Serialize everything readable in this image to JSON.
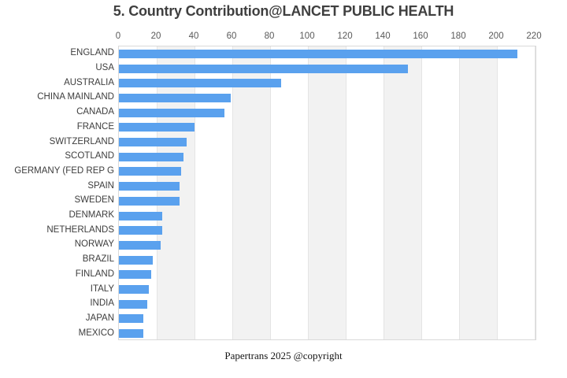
{
  "title": "5. Country Contribution@LANCET PUBLIC HEALTH",
  "footer": "Papertrans 2025 @copyright",
  "colors": {
    "bar": "#5aa1ee",
    "band": "#f2f2f2",
    "gridline": "#e4e4e4",
    "plot_border": "#d9d9d9",
    "title_text": "#3f3f3f",
    "label_text": "#3d3d3d",
    "tick_text": "#595959"
  },
  "chart_data": {
    "type": "bar",
    "orientation": "horizontal",
    "title": "5. Country Contribution@LANCET PUBLIC HEALTH",
    "xlabel": "",
    "ylabel": "",
    "categories": [
      "ENGLAND",
      "USA",
      "AUSTRALIA",
      "CHINA MAINLAND",
      "CANADA",
      "FRANCE",
      "SWITZERLAND",
      "SCOTLAND",
      "GERMANY (FED REP G",
      "SPAIN",
      "SWEDEN",
      "DENMARK",
      "NETHERLANDS",
      "NORWAY",
      "BRAZIL",
      "FINLAND",
      "ITALY",
      "INDIA",
      "JAPAN",
      "MEXICO"
    ],
    "values": [
      211,
      153,
      86,
      59,
      56,
      40,
      36,
      34,
      33,
      32,
      32,
      23,
      23,
      22,
      18,
      17,
      16,
      15,
      13,
      13
    ],
    "xticks": [
      0,
      20,
      40,
      60,
      80,
      100,
      120,
      140,
      160,
      180,
      200,
      220
    ],
    "xlim": [
      0,
      221
    ],
    "grid": "vertical gridlines with alternating shaded bands every 20 units",
    "legend": false
  }
}
